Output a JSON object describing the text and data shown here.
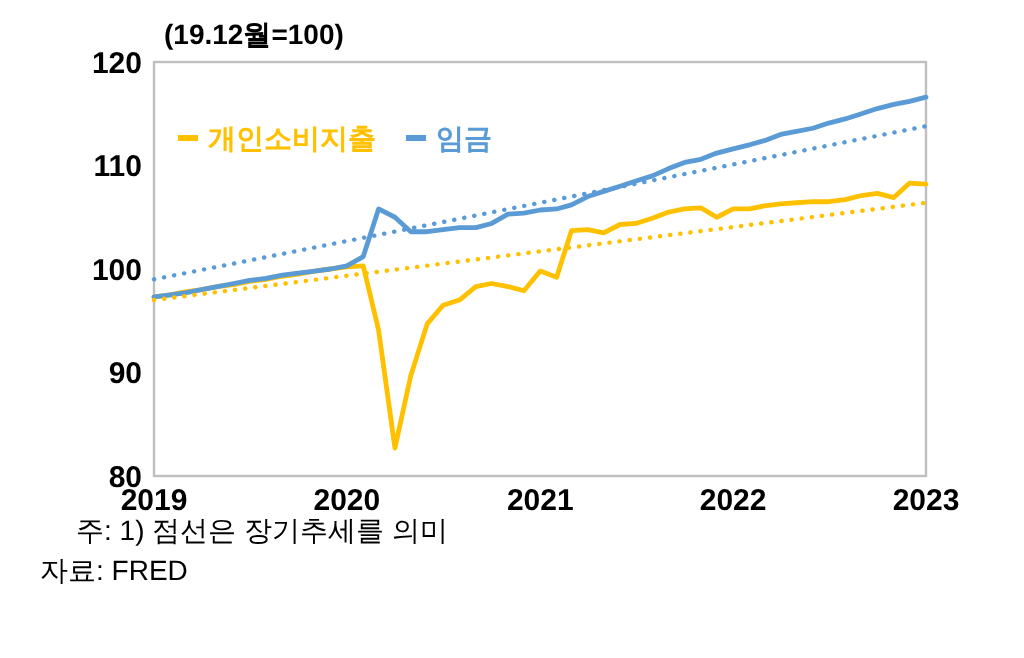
{
  "chart_data": {
    "type": "line",
    "ylabel": "(19.12월=100)",
    "x": [
      "2019-01",
      "2019-02",
      "2019-03",
      "2019-04",
      "2019-05",
      "2019-06",
      "2019-07",
      "2019-08",
      "2019-09",
      "2019-10",
      "2019-11",
      "2019-12",
      "2020-01",
      "2020-02",
      "2020-03",
      "2020-04",
      "2020-05",
      "2020-06",
      "2020-07",
      "2020-08",
      "2020-09",
      "2020-10",
      "2020-11",
      "2020-12",
      "2021-01",
      "2021-02",
      "2021-03",
      "2021-04",
      "2021-05",
      "2021-06",
      "2021-07",
      "2021-08",
      "2021-09",
      "2021-10",
      "2021-11",
      "2021-12",
      "2022-01",
      "2022-02",
      "2022-03",
      "2022-04",
      "2022-05",
      "2022-06",
      "2022-07",
      "2022-08",
      "2022-09",
      "2022-10",
      "2022-11",
      "2022-12",
      "2023-01"
    ],
    "series": [
      {
        "name": "개인소비지출",
        "color": "#ffc000",
        "values": [
          97.3,
          97.5,
          97.8,
          98.0,
          98.3,
          98.5,
          98.8,
          99.0,
          99.3,
          99.5,
          99.8,
          100.0,
          100.2,
          100.3,
          94.1,
          82.7,
          89.7,
          94.7,
          96.5,
          97.0,
          98.3,
          98.6,
          98.3,
          97.9,
          99.8,
          99.2,
          103.7,
          103.8,
          103.5,
          104.3,
          104.4,
          104.9,
          105.5,
          105.8,
          105.9,
          105.0,
          105.8,
          105.8,
          106.1,
          106.3,
          106.4,
          106.5,
          106.5,
          106.7,
          107.1,
          107.3,
          106.9,
          108.3,
          108.2
        ]
      },
      {
        "name": "임금",
        "color": "#5b9bd5",
        "values": [
          97.3,
          97.5,
          97.7,
          98.0,
          98.3,
          98.6,
          98.9,
          99.1,
          99.4,
          99.6,
          99.8,
          100.0,
          100.3,
          101.2,
          105.8,
          105.0,
          103.6,
          103.6,
          103.8,
          104.0,
          104.0,
          104.4,
          105.3,
          105.4,
          105.7,
          105.8,
          106.2,
          107.0,
          107.5,
          108.0,
          108.5,
          109.0,
          109.7,
          110.3,
          110.6,
          111.2,
          111.6,
          112.0,
          112.4,
          113.0,
          113.3,
          113.6,
          114.1,
          114.5,
          115.0,
          115.5,
          115.9,
          116.2,
          116.6
        ]
      },
      {
        "type": "line",
        "color": "#ffc000",
        "line_style": "dotted",
        "x": [
          "2019-01",
          "2023-01"
        ],
        "values": [
          97.0,
          106.4
        ]
      },
      {
        "type": "line",
        "color": "#5b9bd5",
        "line_style": "dotted",
        "x": [
          "2019-01",
          "2023-01"
        ],
        "values": [
          99.0,
          113.8
        ]
      }
    ],
    "xlim": [
      "2019-01",
      "2023-01"
    ],
    "xticks": [
      {
        "value": "2019-01",
        "label": "2019"
      },
      {
        "value": "2020-01",
        "label": "2020"
      },
      {
        "value": "2021-01",
        "label": "2021"
      },
      {
        "value": "2022-01",
        "label": "2022"
      },
      {
        "value": "2023-01",
        "label": "2023"
      }
    ],
    "ylim": [
      80,
      120
    ],
    "yticks": [
      80,
      90,
      100,
      110,
      120
    ],
    "grid": false,
    "legend": "top left",
    "line_style": "solid",
    "marker": "none",
    "annotations": [
      "주: 1) 점선은 장기추세를 의미",
      "자료: FRED"
    ]
  }
}
